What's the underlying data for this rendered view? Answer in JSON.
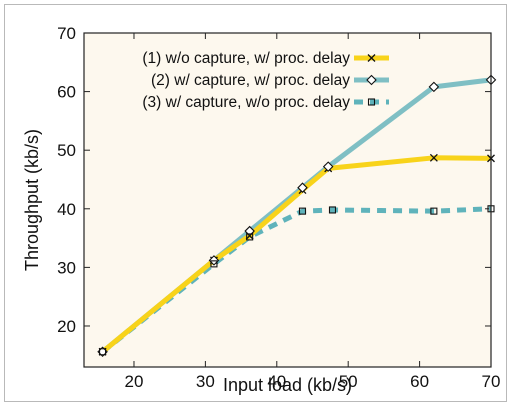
{
  "chart_data": {
    "type": "line",
    "title": "",
    "xlabel": "Input load (kb/s)",
    "ylabel": "Throughput (kb/s)",
    "xlim": [
      13,
      70
    ],
    "ylim": [
      13,
      70
    ],
    "x_ticks": [
      20,
      30,
      40,
      50,
      60,
      70
    ],
    "y_ticks": [
      20,
      30,
      40,
      50,
      60,
      70
    ],
    "grid": false,
    "legend_position": "top-right",
    "background_color": "#fdf8ee",
    "series": [
      {
        "name": "(1) w/o capture, w/ proc. delay",
        "color": "#f8d31a",
        "line_style": "solid",
        "marker": "x",
        "points": [
          [
            15.6,
            15.6
          ],
          [
            31.2,
            31.2
          ],
          [
            36.2,
            35.4
          ],
          [
            43.6,
            43.2
          ],
          [
            47.2,
            46.9
          ],
          [
            62.0,
            48.7
          ],
          [
            70.0,
            48.6
          ]
        ]
      },
      {
        "name": "(2) w/ capture, w/ proc. delay",
        "color": "#7fbfc4",
        "line_style": "solid",
        "marker": "diamond",
        "points": [
          [
            15.6,
            15.6
          ],
          [
            31.2,
            31.2
          ],
          [
            36.2,
            36.2
          ],
          [
            43.6,
            43.6
          ],
          [
            47.2,
            47.2
          ],
          [
            62.0,
            60.8
          ],
          [
            70.0,
            62.0
          ]
        ]
      },
      {
        "name": "(3) w/ capture, w/o proc. delay",
        "color": "#5fb3bb",
        "line_style": "dashed",
        "marker": "square",
        "points": [
          [
            15.6,
            15.6
          ],
          [
            31.2,
            30.6
          ],
          [
            36.2,
            35.2
          ],
          [
            43.6,
            39.6
          ],
          [
            47.8,
            39.8
          ],
          [
            62.0,
            39.6
          ],
          [
            70.0,
            40.0
          ]
        ]
      }
    ]
  }
}
